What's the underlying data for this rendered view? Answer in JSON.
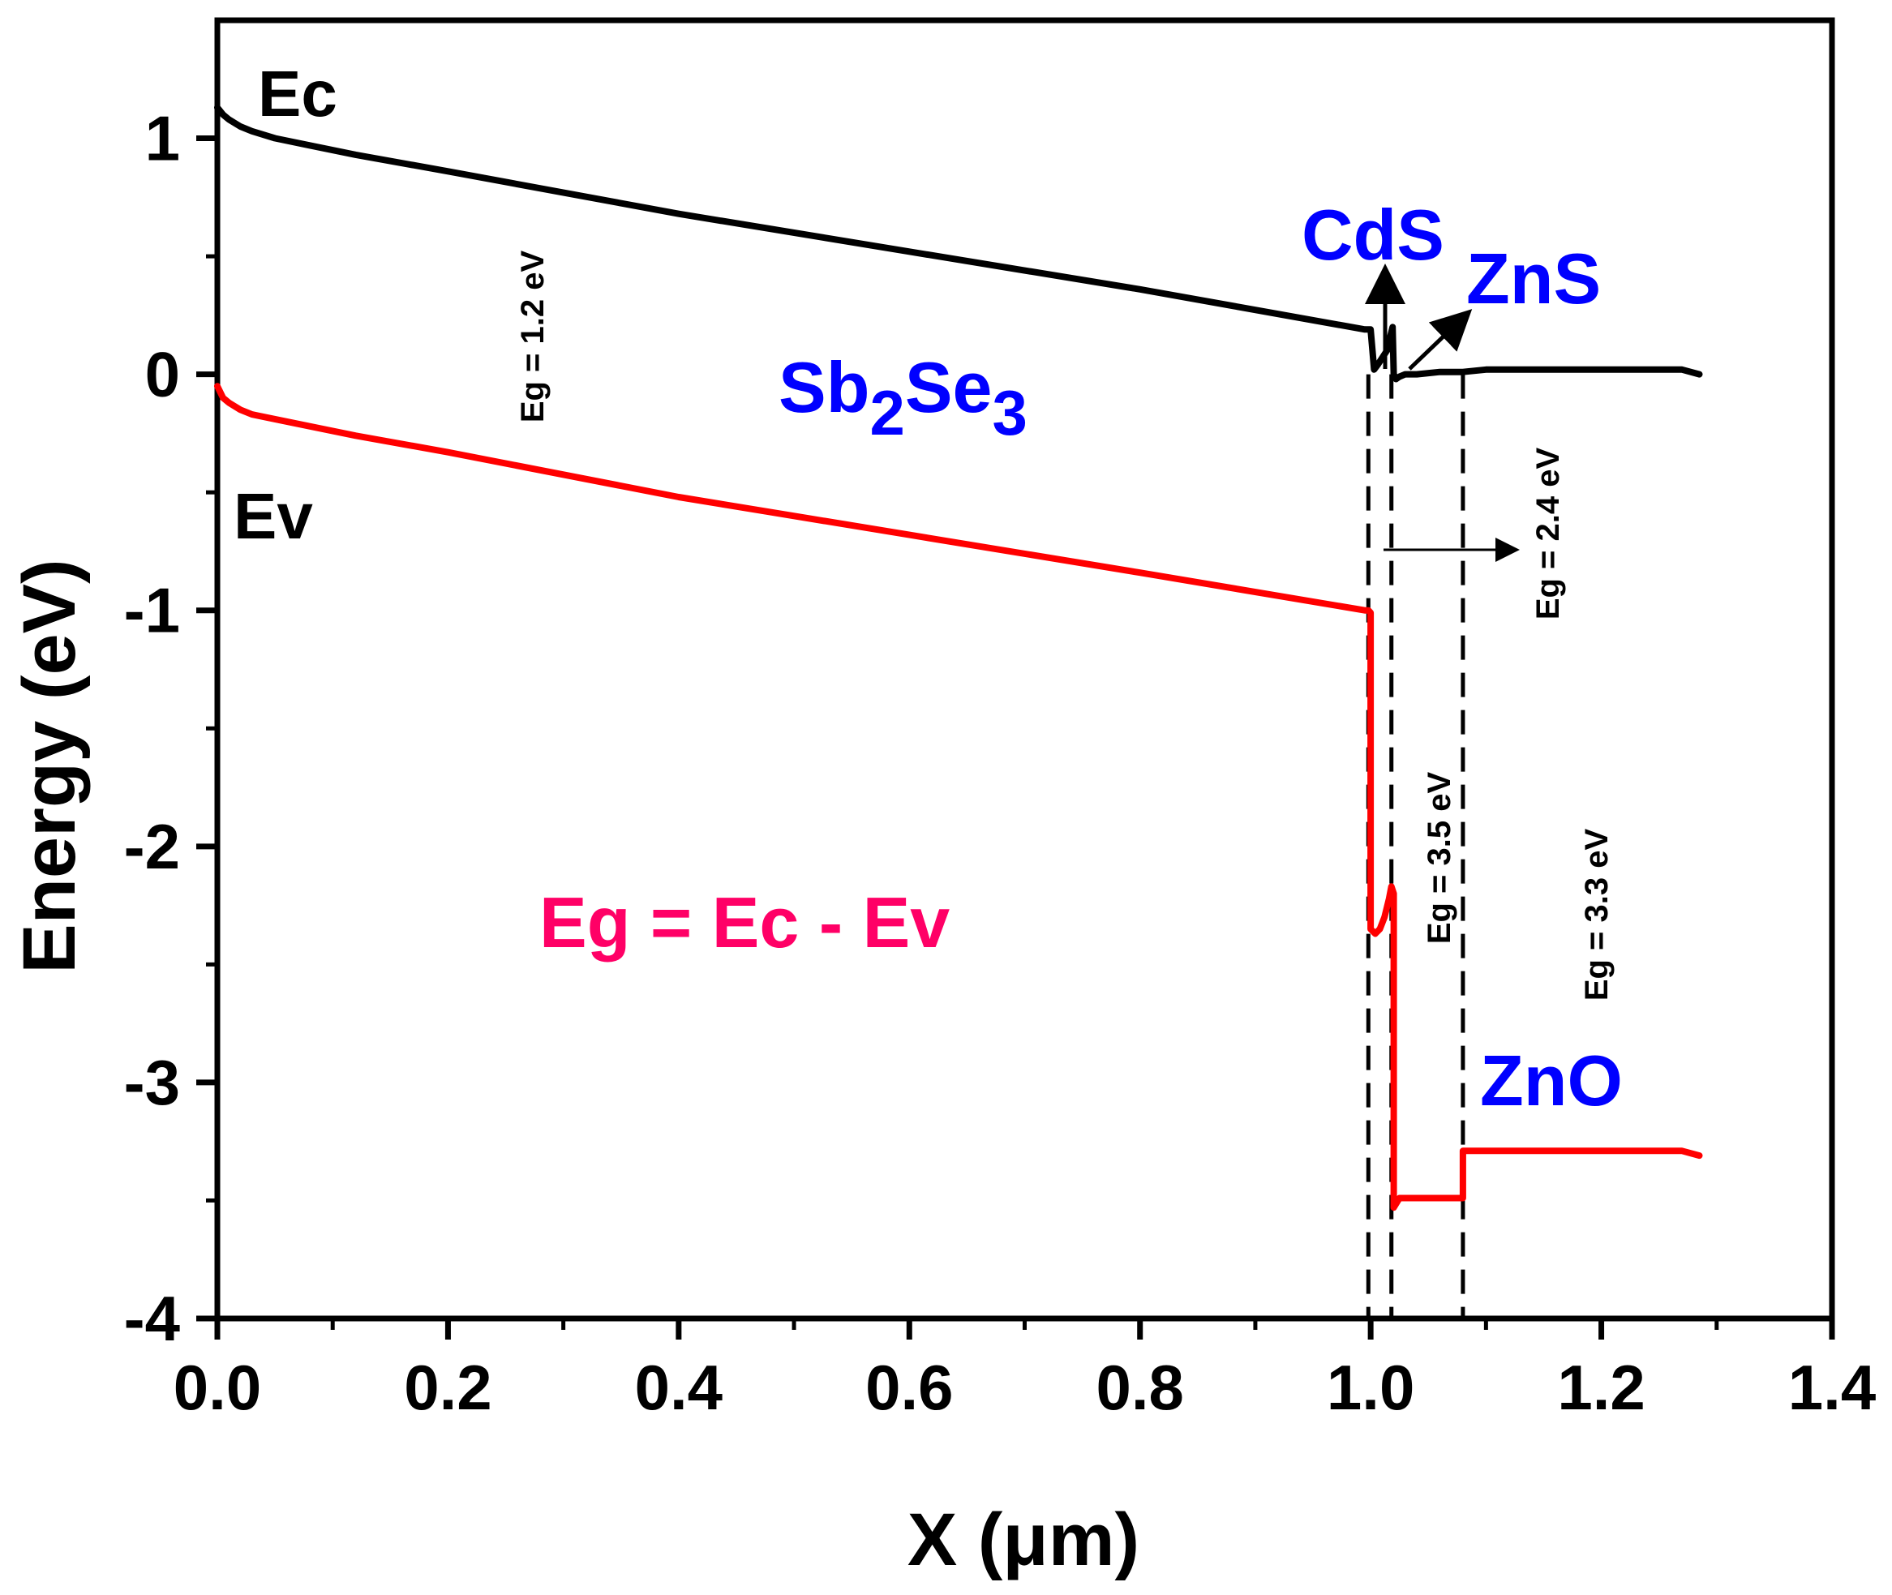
{
  "chart_data": {
    "type": "line",
    "xlabel": "X (μm)",
    "ylabel": "Energy (eV)",
    "xlim": [
      0.0,
      1.4
    ],
    "ylim": [
      -4,
      1.5
    ],
    "xticks": [
      0.0,
      0.2,
      0.4,
      0.6,
      0.8,
      1.0,
      1.2,
      1.4
    ],
    "xtick_labels": [
      "0.0",
      "0.2",
      "0.4",
      "0.6",
      "0.8",
      "1.0",
      "1.2",
      "1.4"
    ],
    "yticks": [
      -4,
      -3,
      -2,
      -1,
      0,
      1
    ],
    "ytick_labels": [
      "-4",
      "-3",
      "-2",
      "-1",
      "0",
      "1"
    ],
    "series": [
      {
        "name": "Ec",
        "color": "#000000",
        "x": [
          0.0,
          0.005,
          0.01,
          0.02,
          0.03,
          0.05,
          0.08,
          0.12,
          0.2,
          0.4,
          0.6,
          0.8,
          0.995,
          0.998,
          1.0,
          1.003,
          1.006,
          1.01,
          1.014,
          1.017,
          1.019,
          1.02,
          1.022,
          1.025,
          1.03,
          1.04,
          1.06,
          1.08,
          1.1,
          1.15,
          1.2,
          1.25,
          1.27,
          1.285
        ],
        "y": [
          1.13,
          1.1,
          1.08,
          1.05,
          1.03,
          1.0,
          0.97,
          0.93,
          0.86,
          0.68,
          0.52,
          0.36,
          0.19,
          0.19,
          0.19,
          0.02,
          0.04,
          0.07,
          0.1,
          0.16,
          0.2,
          0.0,
          -0.02,
          -0.01,
          0.0,
          0.0,
          0.01,
          0.01,
          0.02,
          0.02,
          0.02,
          0.02,
          0.02,
          0.0
        ]
      },
      {
        "name": "Ev",
        "color": "#ff0000",
        "x": [
          0.0,
          0.005,
          0.01,
          0.02,
          0.03,
          0.05,
          0.08,
          0.12,
          0.2,
          0.4,
          0.6,
          0.8,
          0.995,
          0.998,
          1.0,
          1.0,
          1.004,
          1.008,
          1.012,
          1.016,
          1.018,
          1.02,
          1.02,
          1.025,
          1.05,
          1.078,
          1.08,
          1.08,
          1.1,
          1.15,
          1.2,
          1.25,
          1.27,
          1.285
        ],
        "y": [
          -0.05,
          -0.1,
          -0.12,
          -0.15,
          -0.17,
          -0.19,
          -0.22,
          -0.26,
          -0.33,
          -0.52,
          -0.68,
          -0.84,
          -1.0,
          -1.0,
          -1.01,
          -2.35,
          -2.37,
          -2.35,
          -2.3,
          -2.22,
          -2.17,
          -2.2,
          -3.53,
          -3.49,
          -3.49,
          -3.49,
          -3.49,
          -3.29,
          -3.29,
          -3.29,
          -3.29,
          -3.29,
          -3.29,
          -3.31
        ]
      }
    ],
    "boundaries": [
      {
        "name": "Sb2Se3/CdS",
        "x": 0.998,
        "range": [
          -4,
          0.0
        ]
      },
      {
        "name": "CdS/ZnS",
        "x": 1.018,
        "range": [
          -4,
          0.0
        ]
      },
      {
        "name": "ZnS/ZnO",
        "x": 1.08,
        "range": [
          -4,
          0.0
        ]
      }
    ],
    "annotations": {
      "ec": "Ec",
      "ev": "Ev",
      "sb_main": "Sb",
      "sb_sub1": "2",
      "sb_se": "Se",
      "sb_sub2": "3",
      "cds": "CdS",
      "zns": "ZnS",
      "zno": "ZnO",
      "eg_formula": "Eg = Ec - Ev",
      "eg_sb2se3": "Eg = 1.2 eV",
      "eg_cds": "Eg = 2.4 eV",
      "eg_zns": "Eg = 3.5 eV",
      "eg_zno": "Eg = 3.3 eV"
    },
    "colors": {
      "axis": "#000000",
      "material_label": "#0000ff",
      "formula": "#ff0066",
      "ev_line": "#ff0000",
      "ec_line": "#000000"
    }
  }
}
